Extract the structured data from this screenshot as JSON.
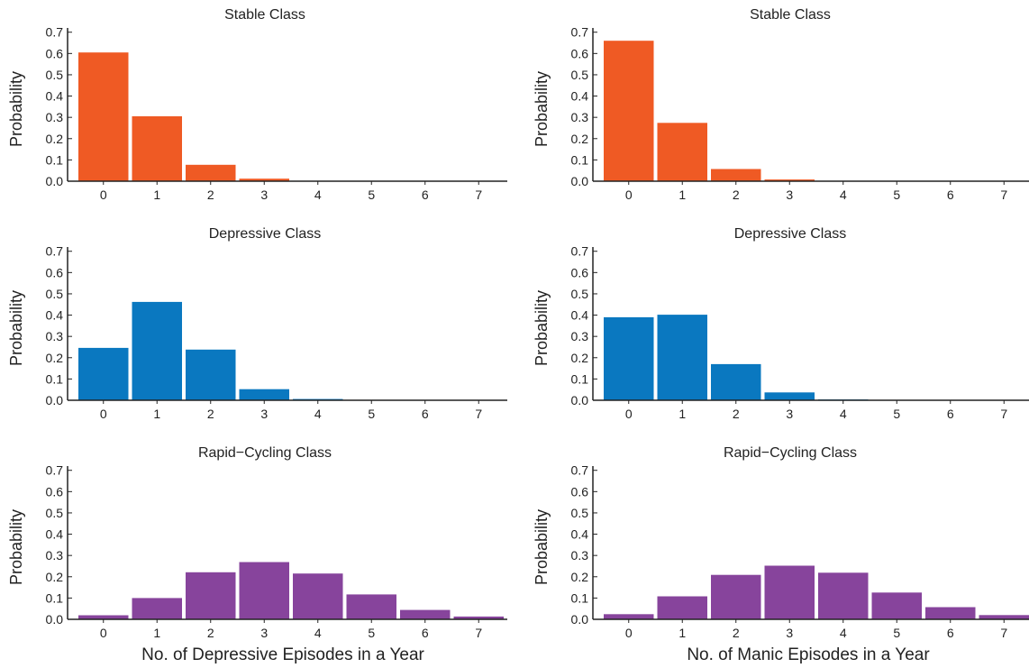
{
  "chart_data": [
    {
      "type": "bar",
      "title": "Stable Class",
      "ylabel": "Probability",
      "xlabel": "",
      "categories": [
        "0",
        "1",
        "2",
        "3",
        "4",
        "5",
        "6",
        "7"
      ],
      "values": [
        0.605,
        0.305,
        0.077,
        0.012,
        0.002,
        0.0,
        0.0,
        0.0
      ],
      "ylim": [
        0,
        0.72
      ],
      "yticks": [
        "0.0",
        "0.1",
        "0.2",
        "0.3",
        "0.4",
        "0.5",
        "0.6",
        "0.7"
      ],
      "color": "#ef5a24"
    },
    {
      "type": "bar",
      "title": "Stable Class",
      "ylabel": "Probability",
      "xlabel": "",
      "categories": [
        "0",
        "1",
        "2",
        "3",
        "4",
        "5",
        "6",
        "7"
      ],
      "values": [
        0.66,
        0.274,
        0.057,
        0.008,
        0.001,
        0.0,
        0.0,
        0.0
      ],
      "ylim": [
        0,
        0.72
      ],
      "yticks": [
        "0.0",
        "0.1",
        "0.2",
        "0.3",
        "0.4",
        "0.5",
        "0.6",
        "0.7"
      ],
      "color": "#ef5a24"
    },
    {
      "type": "bar",
      "title": "Depressive Class",
      "ylabel": "Probability",
      "xlabel": "",
      "categories": [
        "0",
        "1",
        "2",
        "3",
        "4",
        "5",
        "6",
        "7"
      ],
      "values": [
        0.246,
        0.462,
        0.238,
        0.052,
        0.006,
        0.001,
        0.0,
        0.0
      ],
      "ylim": [
        0,
        0.72
      ],
      "yticks": [
        "0.0",
        "0.1",
        "0.2",
        "0.3",
        "0.4",
        "0.5",
        "0.6",
        "0.7"
      ],
      "color": "#0a78c0"
    },
    {
      "type": "bar",
      "title": "Depressive Class",
      "ylabel": "Probability",
      "xlabel": "",
      "categories": [
        "0",
        "1",
        "2",
        "3",
        "4",
        "5",
        "6",
        "7"
      ],
      "values": [
        0.39,
        0.402,
        0.17,
        0.037,
        0.004,
        0.0,
        0.0,
        0.0
      ],
      "ylim": [
        0,
        0.72
      ],
      "yticks": [
        "0.0",
        "0.1",
        "0.2",
        "0.3",
        "0.4",
        "0.5",
        "0.6",
        "0.7"
      ],
      "color": "#0a78c0"
    },
    {
      "type": "bar",
      "title": "Rapid−Cycling Class",
      "ylabel": "Probability",
      "xlabel": "No. of Depressive Episodes in a Year",
      "categories": [
        "0",
        "1",
        "2",
        "3",
        "4",
        "5",
        "6",
        "7"
      ],
      "values": [
        0.019,
        0.1,
        0.221,
        0.269,
        0.215,
        0.117,
        0.044,
        0.013
      ],
      "ylim": [
        0,
        0.72
      ],
      "yticks": [
        "0.0",
        "0.1",
        "0.2",
        "0.3",
        "0.4",
        "0.5",
        "0.6",
        "0.7"
      ],
      "color": "#87449c"
    },
    {
      "type": "bar",
      "title": "Rapid−Cycling Class",
      "ylabel": "Probability",
      "xlabel": "No. of Manic Episodes in a Year",
      "categories": [
        "0",
        "1",
        "2",
        "3",
        "4",
        "5",
        "6",
        "7"
      ],
      "values": [
        0.024,
        0.108,
        0.209,
        0.252,
        0.219,
        0.126,
        0.057,
        0.02
      ],
      "ylim": [
        0,
        0.72
      ],
      "yticks": [
        "0.0",
        "0.1",
        "0.2",
        "0.3",
        "0.4",
        "0.5",
        "0.6",
        "0.7"
      ],
      "color": "#87449c"
    }
  ]
}
